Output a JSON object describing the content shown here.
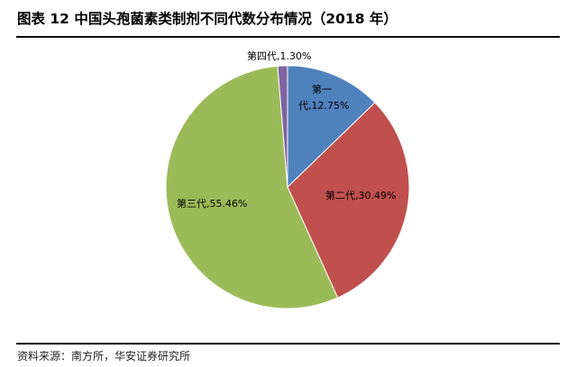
{
  "title": "图表 12 中国头孢菌素类制剂不同代数分布情况（2018 年）",
  "source": "资料来源：南方所，华安证券研究所",
  "chart_data": {
    "type": "pie",
    "title": "图表 12 中国头孢菌素类制剂不同代数分布情况（2018 年）",
    "start": "top",
    "direction": "clockwise",
    "slices": [
      {
        "name": "第一代",
        "value": 12.75,
        "label": "第一代,12.75%",
        "color": "#4F81BD"
      },
      {
        "name": "第二代",
        "value": 30.49,
        "label": "第二代,30.49%",
        "color": "#C0504D"
      },
      {
        "name": "第三代",
        "value": 55.46,
        "label": "第三代,55.46%",
        "color": "#9BBB59"
      },
      {
        "name": "第四代",
        "value": 1.3,
        "label": "第四代,1.30%",
        "color": "#8064A2"
      }
    ]
  }
}
